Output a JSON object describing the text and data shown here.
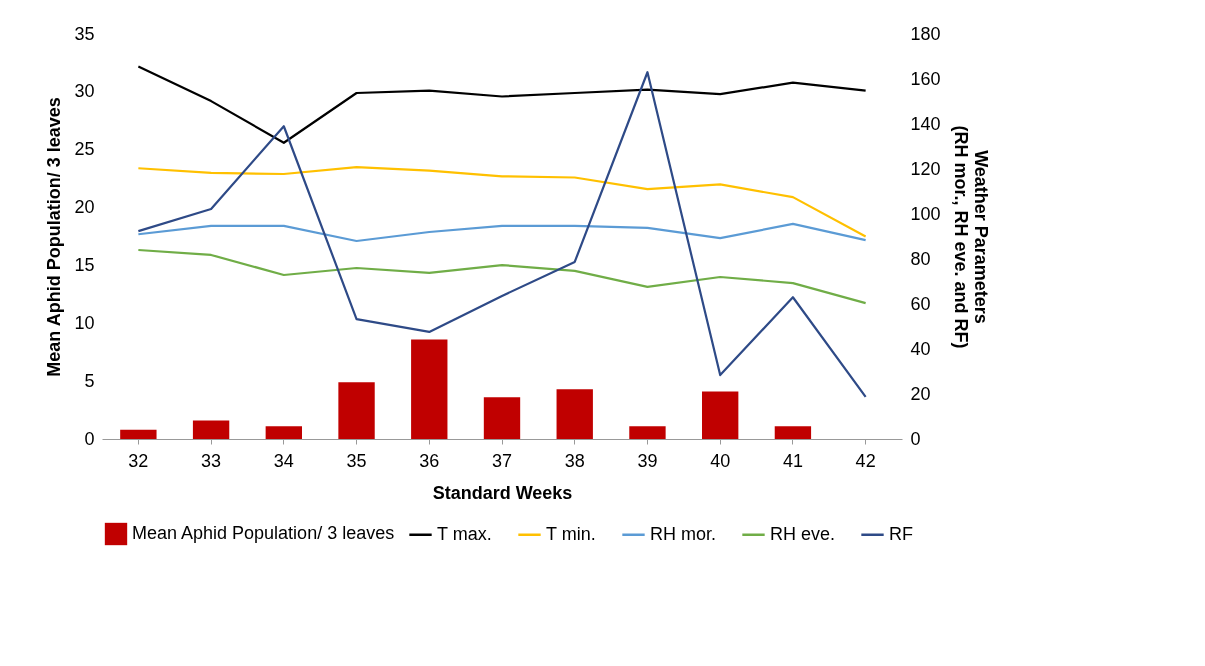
{
  "chart_data": {
    "type": "bar",
    "xlabel": "Standard Weeks",
    "ylabel": "Mean Aphid Population/ 3 leaves",
    "y2label": "Weather Parameters\n(RH mor., RH eve. and RF)",
    "categories": [
      "32",
      "33",
      "34",
      "35",
      "36",
      "37",
      "38",
      "39",
      "40",
      "41",
      "42"
    ],
    "series": [
      {
        "name": "Mean Aphid Population/ 3 leaves",
        "color": "#c00000",
        "values": [
          0.8,
          1.6,
          1.1,
          4.9,
          8.6,
          3.6,
          4.3,
          1.1,
          4.1,
          1.1,
          0
        ]
      },
      {
        "name": "T max.",
        "type": "line",
        "color": "#000000",
        "values": [
          32.2,
          29.2,
          25.6,
          29.9,
          30.1,
          29.6,
          29.9,
          30.2,
          29.8,
          30.8,
          30.1
        ]
      },
      {
        "name": "T min.",
        "type": "line",
        "color": "#ffc000",
        "values": [
          23.4,
          23.0,
          22.9,
          23.5,
          23.2,
          22.7,
          22.6,
          21.6,
          22.0,
          20.9,
          17.5
        ]
      },
      {
        "name": "RH mor.",
        "type": "line",
        "axis": "y2",
        "color": "#5b9bd5",
        "values": [
          91,
          94.7,
          94.7,
          88,
          92,
          94.7,
          94.7,
          93.8,
          89.3,
          95.6,
          88.4
        ]
      },
      {
        "name": "RH eve.",
        "type": "line",
        "axis": "y2",
        "color": "#70ad47",
        "values": [
          84,
          81.8,
          72.9,
          76,
          73.8,
          77.3,
          74.7,
          67.6,
          72,
          69.3,
          60.4
        ]
      },
      {
        "name": "RF",
        "type": "line",
        "axis": "y2",
        "color": "#2e4a87",
        "values": [
          92.4,
          102.2,
          139,
          53.3,
          47.6,
          63.6,
          78.7,
          163,
          28.4,
          63,
          18.7
        ]
      }
    ],
    "ylim": [
      0,
      35
    ],
    "yticks": [
      0,
      5,
      10,
      15,
      20,
      25,
      30,
      35
    ],
    "y2lim": [
      0,
      180
    ],
    "y2ticks": [
      0,
      20,
      40,
      60,
      80,
      100,
      120,
      140,
      160,
      180
    ],
    "grid": false,
    "legend": "bottom",
    "marker": "none",
    "line_style": "solid"
  }
}
